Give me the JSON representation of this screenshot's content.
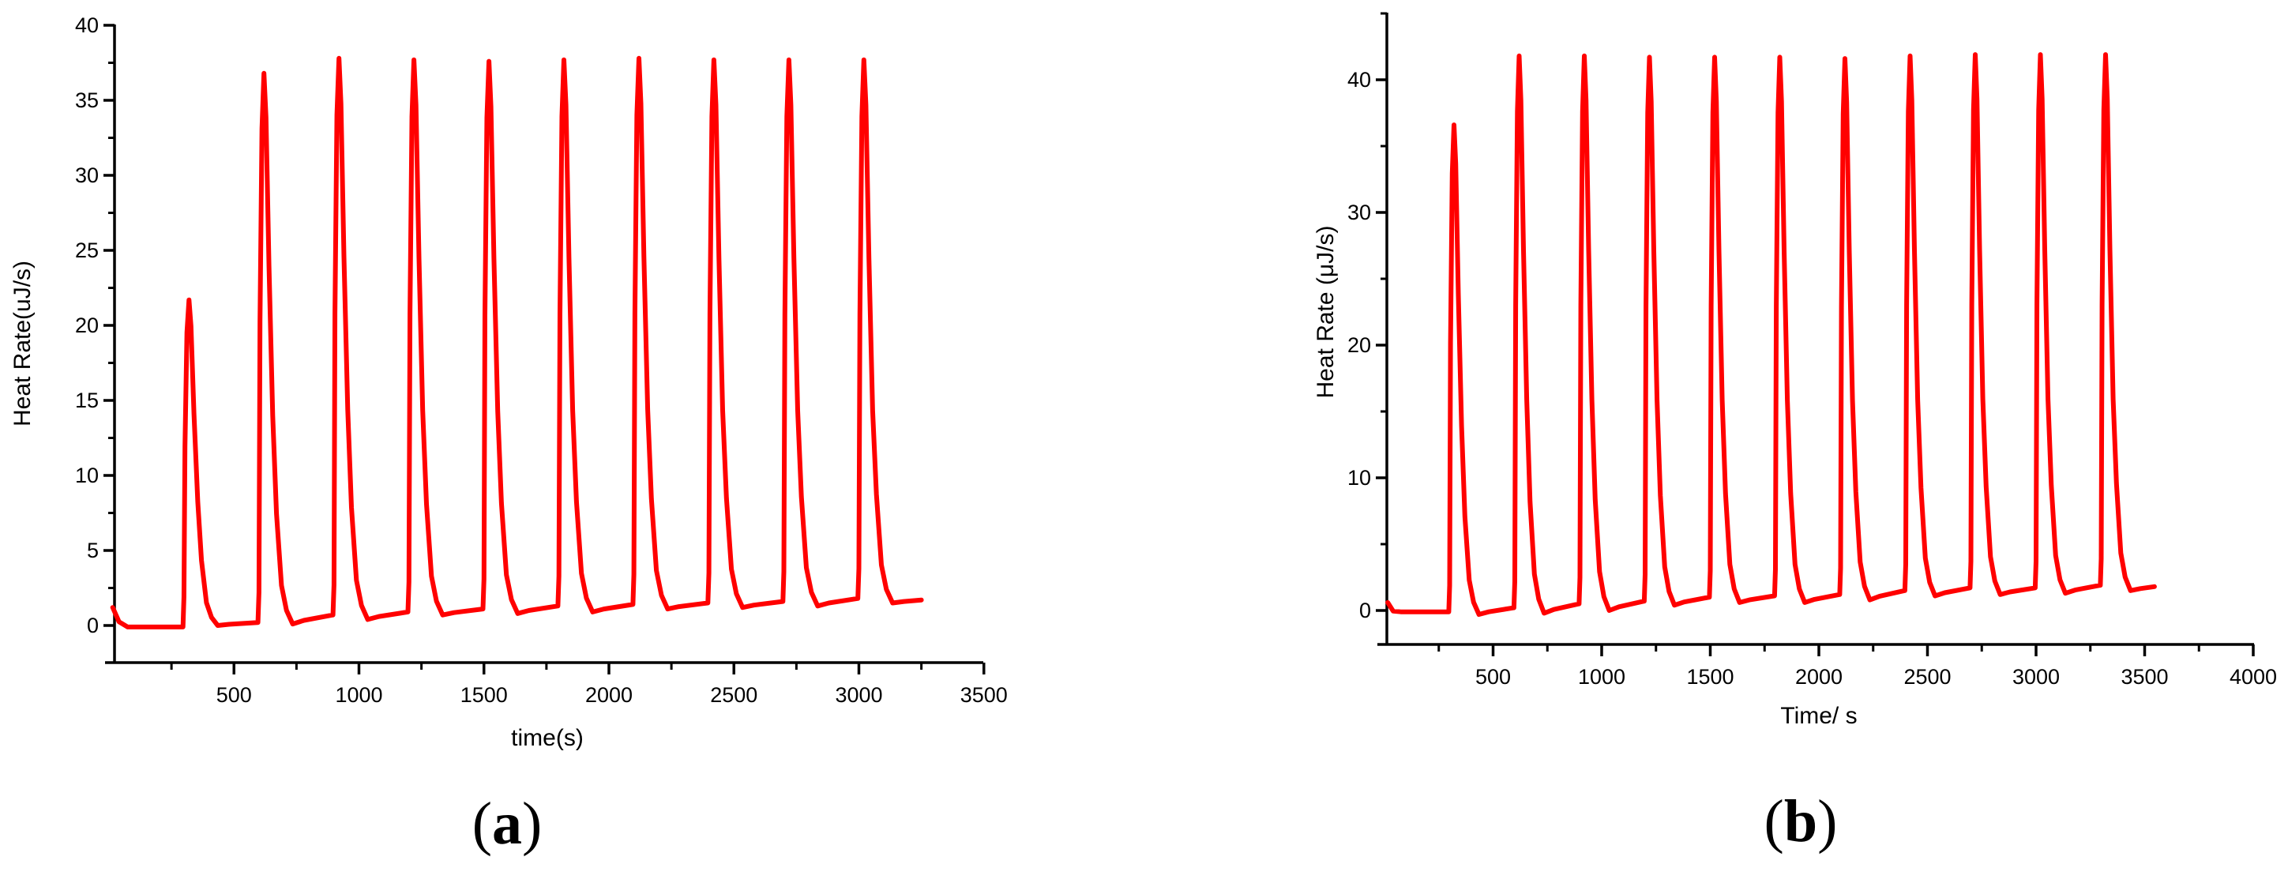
{
  "figure": {
    "panels": [
      {
        "id": "a",
        "caption_letter": "a"
      },
      {
        "id": "b",
        "caption_letter": "b"
      }
    ]
  },
  "chart_data": [
    {
      "panel": "(a)",
      "type": "line",
      "title": "",
      "xlabel": "time(s)",
      "ylabel": "Heat Rate(uJ/s)",
      "xlim": [
        15,
        3500
      ],
      "ylim": [
        -2.5,
        40
      ],
      "x_ticks": [
        500,
        1000,
        1500,
        2000,
        2500,
        3000,
        3500
      ],
      "x_tick_labels": [
        "500",
        "1000",
        "1500",
        "2000",
        "2500",
        "3000",
        "3500"
      ],
      "x_minor_ticks": [
        250,
        750,
        1250,
        1750,
        2250,
        2750,
        3250
      ],
      "y_ticks": [
        0,
        5,
        10,
        15,
        20,
        25,
        30,
        35,
        40
      ],
      "y_tick_labels": [
        "0",
        "5",
        "10",
        "15",
        "20",
        "25",
        "30",
        "35",
        "40"
      ],
      "y_minor_ticks": [
        2.5,
        7.5,
        12.5,
        17.5,
        22.5,
        27.5,
        32.5,
        37.5
      ],
      "grid": false,
      "legend": null,
      "series": [
        {
          "name": "Heat Rate",
          "color": "#ff0000",
          "pulses": {
            "rise_times": [
              300,
              600,
              900,
              1200,
              1500,
              1800,
              2100,
              2400,
              2700,
              3000
            ],
            "peak_values": [
              21.7,
              36.8,
              37.8,
              37.7,
              37.6,
              37.7,
              37.8,
              37.7,
              37.7,
              37.7
            ],
            "pre_rise_baseline": [
              -0.1,
              0.2,
              0.7,
              0.9,
              1.1,
              1.3,
              1.4,
              1.5,
              1.6,
              1.8
            ],
            "trough_values": [
              0.0,
              0.1,
              0.4,
              0.7,
              0.8,
              0.9,
              1.1,
              1.2,
              1.3,
              1.5
            ]
          },
          "start": [
            15,
            1.2
          ],
          "end": [
            3250,
            1.7
          ]
        }
      ]
    },
    {
      "panel": "(b)",
      "type": "line",
      "title": "",
      "xlabel": "Time/ s",
      "ylabel": "Heat Rate (μJ/s)",
      "xlim": [
        15,
        4000
      ],
      "ylim": [
        -2.5,
        45
      ],
      "x_ticks": [
        500,
        1000,
        1500,
        2000,
        2500,
        3000,
        3500,
        4000
      ],
      "x_tick_labels": [
        "500",
        "1000",
        "1500",
        "2000",
        "2500",
        "3000",
        "3500",
        "4000"
      ],
      "x_minor_ticks": [
        250,
        750,
        1250,
        1750,
        2250,
        2750,
        3250,
        3750
      ],
      "y_ticks": [
        0,
        10,
        20,
        30,
        40
      ],
      "y_tick_labels": [
        "0",
        "10",
        "20",
        "30",
        "40"
      ],
      "y_minor_ticks": [
        5,
        15,
        25,
        35,
        45
      ],
      "grid": false,
      "legend": null,
      "series": [
        {
          "name": "Heat Rate",
          "color": "#ff0000",
          "pulses": {
            "rise_times": [
              300,
              600,
              900,
              1200,
              1500,
              1800,
              2100,
              2400,
              2700,
              3000,
              3300
            ],
            "peak_values": [
              36.6,
              41.8,
              41.8,
              41.7,
              41.7,
              41.7,
              41.6,
              41.8,
              41.9,
              41.9,
              41.9
            ],
            "pre_rise_baseline": [
              -0.1,
              0.2,
              0.5,
              0.7,
              1.0,
              1.1,
              1.2,
              1.5,
              1.7,
              1.7,
              1.9
            ],
            "trough_values": [
              -0.3,
              -0.2,
              0.0,
              0.4,
              0.6,
              0.6,
              0.8,
              1.1,
              1.2,
              1.3,
              1.5
            ]
          },
          "start": [
            15,
            0.6
          ],
          "end": [
            3545,
            1.8
          ]
        }
      ]
    }
  ]
}
